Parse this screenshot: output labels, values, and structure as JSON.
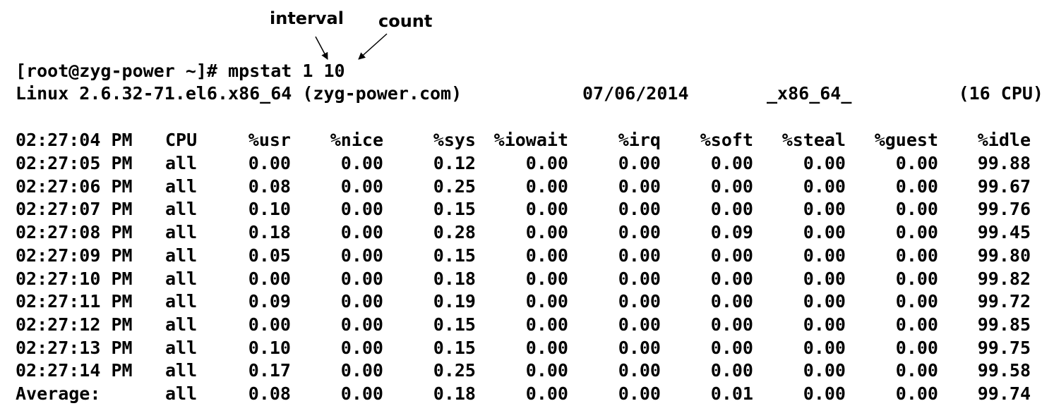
{
  "annotations": {
    "interval": "interval",
    "count": "count"
  },
  "terminal": {
    "prompt": "[root@zyg-power ~]# ",
    "command": "mpstat 1 10",
    "info": {
      "kernel": "Linux 2.6.32-71.el6.x86_64 (zyg-power.com)",
      "date": "07/06/2014",
      "arch": "_x86_64_",
      "cpus": "(16 CPU)"
    },
    "headers": [
      "02:27:04 PM",
      "CPU",
      "%usr",
      "%nice",
      "%sys",
      "%iowait",
      "%irq",
      "%soft",
      "%steal",
      "%guest",
      "%idle"
    ],
    "rows": [
      [
        "02:27:05 PM",
        "all",
        "0.00",
        "0.00",
        "0.12",
        "0.00",
        "0.00",
        "0.00",
        "0.00",
        "0.00",
        "99.88"
      ],
      [
        "02:27:06 PM",
        "all",
        "0.08",
        "0.00",
        "0.25",
        "0.00",
        "0.00",
        "0.00",
        "0.00",
        "0.00",
        "99.67"
      ],
      [
        "02:27:07 PM",
        "all",
        "0.10",
        "0.00",
        "0.15",
        "0.00",
        "0.00",
        "0.00",
        "0.00",
        "0.00",
        "99.76"
      ],
      [
        "02:27:08 PM",
        "all",
        "0.18",
        "0.00",
        "0.28",
        "0.00",
        "0.00",
        "0.09",
        "0.00",
        "0.00",
        "99.45"
      ],
      [
        "02:27:09 PM",
        "all",
        "0.05",
        "0.00",
        "0.15",
        "0.00",
        "0.00",
        "0.00",
        "0.00",
        "0.00",
        "99.80"
      ],
      [
        "02:27:10 PM",
        "all",
        "0.00",
        "0.00",
        "0.18",
        "0.00",
        "0.00",
        "0.00",
        "0.00",
        "0.00",
        "99.82"
      ],
      [
        "02:27:11 PM",
        "all",
        "0.09",
        "0.00",
        "0.19",
        "0.00",
        "0.00",
        "0.00",
        "0.00",
        "0.00",
        "99.72"
      ],
      [
        "02:27:12 PM",
        "all",
        "0.00",
        "0.00",
        "0.15",
        "0.00",
        "0.00",
        "0.00",
        "0.00",
        "0.00",
        "99.85"
      ],
      [
        "02:27:13 PM",
        "all",
        "0.10",
        "0.00",
        "0.15",
        "0.00",
        "0.00",
        "0.00",
        "0.00",
        "0.00",
        "99.75"
      ],
      [
        "02:27:14 PM",
        "all",
        "0.17",
        "0.00",
        "0.25",
        "0.00",
        "0.00",
        "0.00",
        "0.00",
        "0.00",
        "99.58"
      ],
      [
        "Average:",
        "all",
        "0.08",
        "0.00",
        "0.18",
        "0.00",
        "0.00",
        "0.01",
        "0.00",
        "0.00",
        "99.74"
      ]
    ]
  }
}
